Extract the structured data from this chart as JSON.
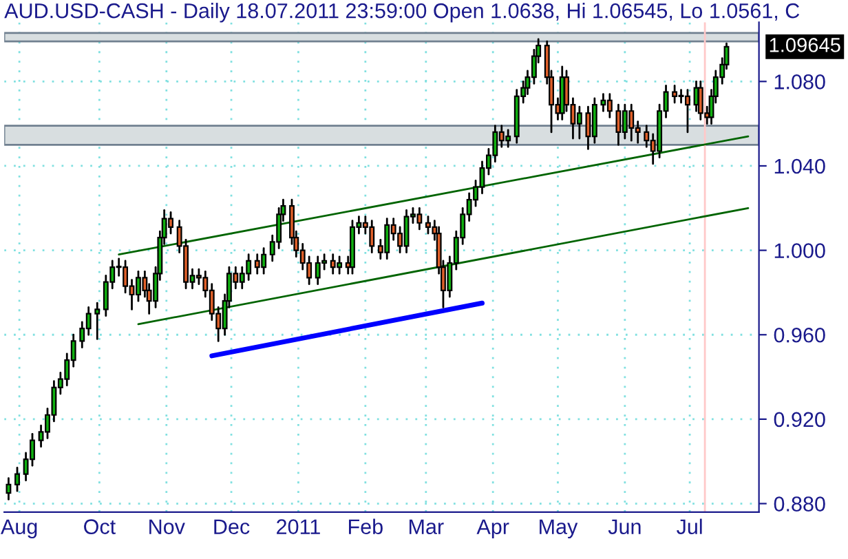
{
  "chart_data": {
    "type": "candlestick",
    "title": "AUD.USD-CASH - Daily 18.07.2011 23:59:00 Open 1.0638, Hi 1.06545, Lo 1.0561, C",
    "x": [
      "2010-08-20",
      "2010-08-24",
      "2010-08-28",
      "2010-08-31",
      "2010-09-04",
      "2010-09-07",
      "2010-09-10",
      "2010-09-13",
      "2010-09-16",
      "2010-09-19",
      "2010-09-23",
      "2010-09-26",
      "2010-09-30",
      "2010-10-04",
      "2010-10-07",
      "2010-10-10",
      "2010-10-13",
      "2010-10-16",
      "2010-10-19",
      "2010-10-22",
      "2010-10-24",
      "2010-10-27",
      "2010-10-29",
      "2010-10-31",
      "2010-11-03",
      "2010-11-07",
      "2010-11-10",
      "2010-11-13",
      "2010-11-16",
      "2010-11-19",
      "2010-11-22",
      "2010-11-25",
      "2010-11-28",
      "2010-11-30",
      "2010-12-03",
      "2010-12-06",
      "2010-12-09",
      "2010-12-13",
      "2010-12-16",
      "2010-12-20",
      "2010-12-23",
      "2010-12-25",
      "2010-12-29",
      "2010-12-31",
      "2011-01-03",
      "2011-01-06",
      "2011-01-10",
      "2011-01-13",
      "2011-01-17",
      "2011-01-20",
      "2011-01-24",
      "2011-01-26",
      "2011-01-29",
      "2011-02-01",
      "2011-02-04",
      "2011-02-08",
      "2011-02-11",
      "2011-02-14",
      "2011-02-17",
      "2011-02-20",
      "2011-02-23",
      "2011-02-26",
      "2011-03-02",
      "2011-03-05",
      "2011-03-07",
      "2011-03-09",
      "2011-03-12",
      "2011-03-15",
      "2011-03-18",
      "2011-03-21",
      "2011-03-24",
      "2011-03-27",
      "2011-03-30",
      "2011-04-02",
      "2011-04-05",
      "2011-04-08",
      "2011-04-12",
      "2011-04-15",
      "2011-04-17",
      "2011-04-20",
      "2011-04-22",
      "2011-04-26",
      "2011-04-28",
      "2011-05-01",
      "2011-05-03",
      "2011-05-05",
      "2011-05-08",
      "2011-05-11",
      "2011-05-15",
      "2011-05-18",
      "2011-05-22",
      "2011-05-25",
      "2011-05-29",
      "2011-06-01",
      "2011-06-04",
      "2011-06-07",
      "2011-06-11",
      "2011-06-14",
      "2011-06-17",
      "2011-06-20",
      "2011-06-24",
      "2011-06-27",
      "2011-06-30",
      "2011-07-04",
      "2011-07-06",
      "2011-07-09",
      "2011-07-11",
      "2011-07-13",
      "2011-07-16",
      "2011-07-18"
    ],
    "ohlc": [
      [
        0.885,
        0.892,
        0.882,
        0.889
      ],
      [
        0.889,
        0.897,
        0.886,
        0.894
      ],
      [
        0.894,
        0.904,
        0.891,
        0.901
      ],
      [
        0.901,
        0.913,
        0.898,
        0.91
      ],
      [
        0.91,
        0.917,
        0.907,
        0.914
      ],
      [
        0.914,
        0.925,
        0.911,
        0.922
      ],
      [
        0.922,
        0.938,
        0.919,
        0.935
      ],
      [
        0.935,
        0.942,
        0.932,
        0.939
      ],
      [
        0.939,
        0.951,
        0.936,
        0.948
      ],
      [
        0.948,
        0.96,
        0.945,
        0.957
      ],
      [
        0.957,
        0.966,
        0.954,
        0.963
      ],
      [
        0.963,
        0.973,
        0.96,
        0.97
      ],
      [
        0.97,
        0.975,
        0.958,
        0.972
      ],
      [
        0.972,
        0.988,
        0.969,
        0.985
      ],
      [
        0.985,
        0.995,
        0.982,
        0.992
      ],
      [
        0.992,
        0.996,
        0.988,
        0.992
      ],
      [
        0.992,
        0.995,
        0.98,
        0.983
      ],
      [
        0.983,
        0.986,
        0.972,
        0.979
      ],
      [
        0.979,
        0.99,
        0.976,
        0.987
      ],
      [
        0.987,
        0.99,
        0.978,
        0.981
      ],
      [
        0.981,
        0.984,
        0.97,
        0.976
      ],
      [
        0.976,
        0.992,
        0.973,
        0.989
      ],
      [
        0.989,
        1.009,
        0.986,
        1.006
      ],
      [
        1.006,
        1.019,
        1.003,
        1.015
      ],
      [
        1.015,
        1.018,
        1.008,
        1.011
      ],
      [
        1.011,
        1.014,
        0.999,
        1.002
      ],
      [
        1.002,
        1.005,
        0.982,
        0.985
      ],
      [
        0.985,
        0.991,
        0.982,
        0.988
      ],
      [
        0.988,
        0.991,
        0.984,
        0.987
      ],
      [
        0.987,
        0.99,
        0.978,
        0.981
      ],
      [
        0.981,
        0.984,
        0.967,
        0.97
      ],
      [
        0.97,
        0.973,
        0.957,
        0.963
      ],
      [
        0.963,
        0.979,
        0.96,
        0.976
      ],
      [
        0.976,
        0.992,
        0.973,
        0.989
      ],
      [
        0.989,
        0.992,
        0.982,
        0.985
      ],
      [
        0.985,
        0.992,
        0.982,
        0.989
      ],
      [
        0.989,
        0.998,
        0.986,
        0.995
      ],
      [
        0.995,
        0.998,
        0.989,
        0.992
      ],
      [
        0.992,
        1.001,
        0.989,
        0.998
      ],
      [
        0.998,
        1.007,
        0.995,
        1.004
      ],
      [
        1.004,
        1.02,
        1.001,
        1.017
      ],
      [
        1.017,
        1.024,
        1.014,
        1.021
      ],
      [
        1.021,
        1.024,
        1.003,
        1.006
      ],
      [
        1.006,
        1.009,
        0.997,
        1.0
      ],
      [
        1.0,
        1.003,
        0.991,
        0.994
      ],
      [
        0.994,
        0.997,
        0.984,
        0.987
      ],
      [
        0.987,
        0.997,
        0.984,
        0.994
      ],
      [
        0.994,
        0.998,
        0.991,
        0.995
      ],
      [
        0.995,
        0.998,
        0.989,
        0.992
      ],
      [
        0.992,
        0.997,
        0.989,
        0.994
      ],
      [
        0.994,
        0.997,
        0.989,
        0.992
      ],
      [
        0.992,
        1.014,
        0.989,
        1.011
      ],
      [
        1.011,
        1.016,
        1.008,
        1.013
      ],
      [
        1.013,
        1.016,
        1.008,
        1.011
      ],
      [
        1.011,
        1.014,
        0.999,
        1.002
      ],
      [
        1.002,
        1.005,
        0.996,
        0.999
      ],
      [
        0.999,
        1.015,
        0.996,
        1.012
      ],
      [
        1.012,
        1.015,
        1.005,
        1.008
      ],
      [
        1.008,
        1.011,
        0.999,
        1.002
      ],
      [
        1.002,
        1.019,
        0.999,
        1.016
      ],
      [
        1.016,
        1.02,
        1.013,
        1.017
      ],
      [
        1.017,
        1.02,
        1.01,
        1.013
      ],
      [
        1.013,
        1.016,
        1.008,
        1.011
      ],
      [
        1.011,
        1.014,
        1.005,
        1.008
      ],
      [
        1.008,
        1.011,
        0.989,
        0.992
      ],
      [
        0.992,
        0.995,
        0.973,
        0.981
      ],
      [
        0.981,
        0.997,
        0.978,
        0.994
      ],
      [
        0.994,
        1.009,
        0.991,
        1.006
      ],
      [
        1.006,
        1.02,
        1.003,
        1.017
      ],
      [
        1.017,
        1.027,
        1.014,
        1.024
      ],
      [
        1.024,
        1.033,
        1.021,
        1.03
      ],
      [
        1.03,
        1.042,
        1.027,
        1.039
      ],
      [
        1.039,
        1.048,
        1.036,
        1.045
      ],
      [
        1.045,
        1.059,
        1.042,
        1.056
      ],
      [
        1.056,
        1.059,
        1.049,
        1.052
      ],
      [
        1.052,
        1.057,
        1.049,
        1.054
      ],
      [
        1.054,
        1.076,
        1.051,
        1.073
      ],
      [
        1.073,
        1.08,
        1.07,
        1.077
      ],
      [
        1.077,
        1.085,
        1.074,
        1.082
      ],
      [
        1.082,
        1.095,
        1.079,
        1.092
      ],
      [
        1.092,
        1.1,
        1.089,
        1.097
      ],
      [
        1.097,
        1.099,
        1.079,
        1.082
      ],
      [
        1.082,
        1.085,
        1.056,
        1.069
      ],
      [
        1.069,
        1.072,
        1.062,
        1.065
      ],
      [
        1.065,
        1.087,
        1.062,
        1.082
      ],
      [
        1.082,
        1.085,
        1.066,
        1.069
      ],
      [
        1.069,
        1.072,
        1.053,
        1.06
      ],
      [
        1.06,
        1.068,
        1.053,
        1.065
      ],
      [
        1.065,
        1.068,
        1.048,
        1.054
      ],
      [
        1.054,
        1.072,
        1.051,
        1.069
      ],
      [
        1.069,
        1.074,
        1.066,
        1.071
      ],
      [
        1.071,
        1.074,
        1.063,
        1.066
      ],
      [
        1.066,
        1.069,
        1.05,
        1.056
      ],
      [
        1.056,
        1.069,
        1.053,
        1.066
      ],
      [
        1.066,
        1.069,
        1.052,
        1.058
      ],
      [
        1.058,
        1.061,
        1.051,
        1.056
      ],
      [
        1.056,
        1.059,
        1.049,
        1.052
      ],
      [
        1.052,
        1.055,
        1.041,
        1.047
      ],
      [
        1.047,
        1.069,
        1.044,
        1.066
      ],
      [
        1.066,
        1.078,
        1.063,
        1.075
      ],
      [
        1.075,
        1.078,
        1.07,
        1.073
      ],
      [
        1.073,
        1.076,
        1.07,
        1.073
      ],
      [
        1.073,
        1.076,
        1.056,
        1.069
      ],
      [
        1.069,
        1.08,
        1.066,
        1.077
      ],
      [
        1.077,
        1.08,
        1.062,
        1.065
      ],
      [
        1.065,
        1.068,
        1.06,
        1.063
      ],
      [
        1.063,
        1.076,
        1.06,
        1.073
      ],
      [
        1.073,
        1.085,
        1.07,
        1.082
      ],
      [
        1.082,
        1.091,
        1.079,
        1.088
      ],
      [
        1.088,
        1.098,
        1.086,
        1.09645
      ]
    ],
    "series": [
      {
        "type": "line",
        "x": [
          "2010-10-10",
          "2011-07-28"
        ],
        "values": [
          0.998,
          1.054
        ],
        "color": "#006400"
      },
      {
        "type": "line",
        "x": [
          "2010-10-19",
          "2011-07-28"
        ],
        "values": [
          0.965,
          1.02
        ],
        "color": "#006400"
      },
      {
        "type": "line",
        "x": [
          "2010-11-22",
          "2011-03-27"
        ],
        "values": [
          0.95,
          0.975
        ],
        "color": "#0000ff"
      }
    ],
    "bands": [
      {
        "axis": "y",
        "from": 1.05,
        "to": 1.059,
        "color": "#d8dee0"
      },
      {
        "axis": "y",
        "from": 1.099,
        "to": 1.103,
        "color": "#d8dee0"
      }
    ],
    "ref_lines": [
      {
        "axis": "x",
        "value": "2011-07-08",
        "color": "#ffc8c8"
      }
    ],
    "annotations": [
      "1.09645"
    ],
    "xlim": [
      "2010-08-18",
      "2011-08-02"
    ],
    "xticks": [
      {
        "value": "2010-08-25",
        "label": "Aug"
      },
      {
        "value": "2010-10-01",
        "label": "Oct"
      },
      {
        "value": "2010-11-01",
        "label": "Nov"
      },
      {
        "value": "2010-12-01",
        "label": "Dec"
      },
      {
        "value": "2011-01-01",
        "label": "2011"
      },
      {
        "value": "2011-02-01",
        "label": "Feb"
      },
      {
        "value": "2011-03-01",
        "label": "Mar"
      },
      {
        "value": "2011-04-01",
        "label": "Apr"
      },
      {
        "value": "2011-05-01",
        "label": "May"
      },
      {
        "value": "2011-06-01",
        "label": "Jun"
      },
      {
        "value": "2011-07-01",
        "label": "Jul"
      }
    ],
    "ylim": [
      0.876,
      1.108
    ],
    "yticks": [
      {
        "value": 0.88,
        "label": "0.880"
      },
      {
        "value": 0.92,
        "label": "0.920"
      },
      {
        "value": 0.96,
        "label": "0.960"
      },
      {
        "value": 1.0,
        "label": "1.000"
      },
      {
        "value": 1.04,
        "label": "1.040"
      },
      {
        "value": 1.08,
        "label": "1.080"
      }
    ],
    "grid": true
  }
}
